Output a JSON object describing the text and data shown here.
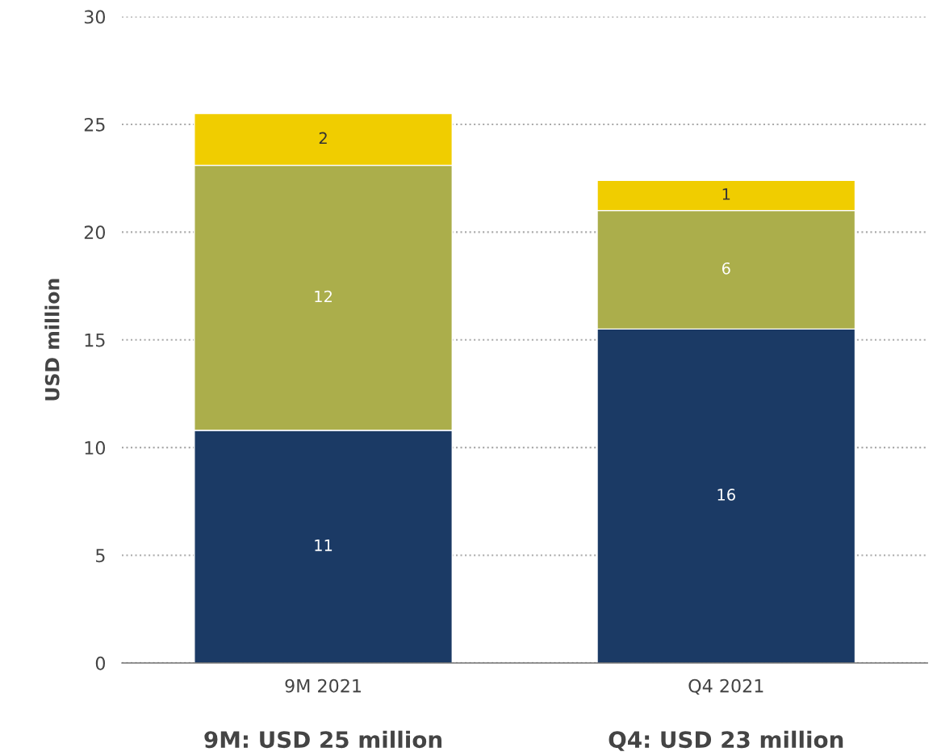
{
  "chart_data": {
    "type": "bar",
    "stacked": true,
    "ylabel": "USD million",
    "categories": [
      "9M 2021",
      "Q4 2021"
    ],
    "series": [
      {
        "color": "#1b3a65",
        "values": [
          10.8,
          15.5
        ],
        "value_labels": [
          "11",
          "16"
        ]
      },
      {
        "color": "#abae4b",
        "values": [
          12.3,
          5.5
        ],
        "value_labels": [
          "12",
          "6"
        ]
      },
      {
        "color": "#f0cd00",
        "values": [
          2.4,
          1.4
        ],
        "value_labels": [
          "2",
          "1"
        ]
      }
    ],
    "ylim": [
      0,
      30
    ],
    "yticks": [
      0,
      5,
      10,
      15,
      20,
      25,
      30
    ],
    "grid": "y",
    "annotations": [
      "9M: USD 25 million",
      "Q4: USD 23 million"
    ]
  }
}
